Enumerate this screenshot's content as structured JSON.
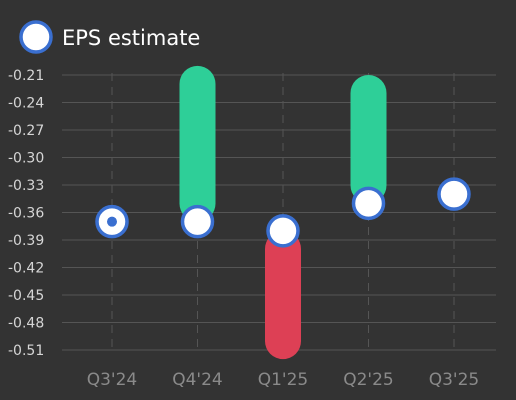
{
  "chart_data": {
    "type": "range-dot",
    "title": "",
    "xlabel": "",
    "ylabel": "",
    "legend": {
      "label": "EPS estimate",
      "position": "top-left"
    },
    "categories": [
      "Q3'24",
      "Q4'24",
      "Q1'25",
      "Q2'25",
      "Q3'25"
    ],
    "y_ticks": [
      -0.21,
      -0.24,
      -0.27,
      -0.3,
      -0.33,
      -0.36,
      -0.39,
      -0.42,
      -0.45,
      -0.48,
      -0.51
    ],
    "y_tick_labels": [
      "-0.21",
      "-0.24",
      "-0.27",
      "-0.30",
      "-0.33",
      "-0.36",
      "-0.39",
      "-0.42",
      "-0.45",
      "-0.48",
      "-0.51"
    ],
    "ylim": [
      -0.52,
      -0.205
    ],
    "grid": {
      "horizontal": true,
      "vertical": "dashed"
    },
    "series": [
      {
        "name": "EPS estimate",
        "values": [
          -0.37,
          -0.37,
          -0.38,
          -0.35,
          -0.34
        ]
      },
      {
        "values": [
          -0.37,
          -0.2,
          -0.52,
          -0.21,
          null
        ]
      }
    ],
    "colors": {
      "beat": "#2ecf98",
      "miss": "#dd4055",
      "marker_fill": "#ffffff",
      "marker_stroke": "#3a6fd0",
      "grid": "#555555",
      "background": "#333333"
    }
  }
}
